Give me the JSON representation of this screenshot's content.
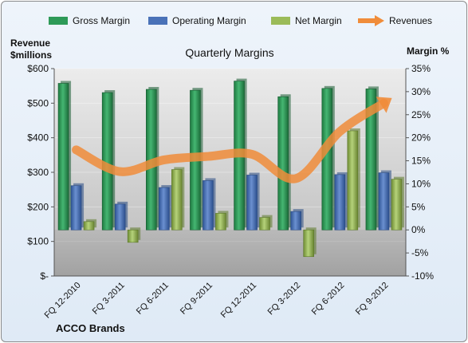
{
  "chart_data": {
    "type": "bar",
    "title": "Quarterly Margins",
    "brand": "ACCO Brands",
    "left_axis_label": [
      "Revenue",
      "$millions"
    ],
    "right_axis_label": "Margin %",
    "categories": [
      "FQ 12-2010",
      "FQ 3-2011",
      "FQ 6-2011",
      "FQ 9-2011",
      "FQ 12-2011",
      "FQ 3-2012",
      "FQ 6-2012",
      "FQ 9-2012"
    ],
    "left_ticks": [
      "$-",
      "$100",
      "$200",
      "$300",
      "$400",
      "$500",
      "$600"
    ],
    "right_ticks": [
      "-10%",
      "-5%",
      "0%",
      "5%",
      "10%",
      "15%",
      "20%",
      "25%",
      "30%",
      "35%"
    ],
    "left_ylim": [
      0,
      600
    ],
    "right_ylim": [
      -10,
      35
    ],
    "legend_position": "top",
    "series": [
      {
        "name": "Gross Margin",
        "kind": "bar",
        "axis": "right",
        "color": "#2e9a58",
        "values": [
          31.8,
          29.8,
          30.5,
          30.3,
          32.3,
          28.9,
          30.7,
          30.6
        ]
      },
      {
        "name": "Operating Margin",
        "kind": "bar",
        "axis": "right",
        "color": "#4a72b8",
        "values": [
          9.6,
          5.6,
          9.2,
          10.7,
          11.9,
          4.0,
          12.0,
          12.4
        ]
      },
      {
        "name": "Net Margin",
        "kind": "bar",
        "axis": "right",
        "color": "#9bbb59",
        "values": [
          1.8,
          -2.7,
          13.1,
          3.6,
          2.7,
          -5.8,
          21.5,
          11.0
        ]
      },
      {
        "name": "Revenues",
        "kind": "line",
        "axis": "left",
        "color": "#f08c3a",
        "values": [
          365,
          302,
          336,
          346,
          352,
          282,
          418,
          500
        ]
      }
    ]
  }
}
